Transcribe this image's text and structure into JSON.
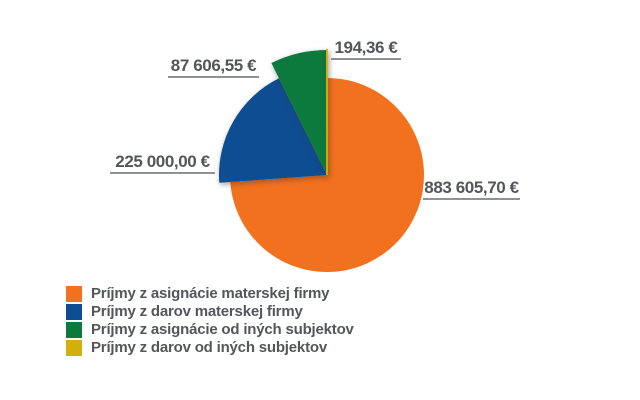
{
  "chart_data": {
    "type": "pie",
    "title": "",
    "direction": "clockwise",
    "start_angle_deg": 0,
    "legend_position": "bottom-left",
    "grid": false,
    "slices": [
      {
        "label": "Príjmy z asignácie materskej firmy",
        "value": 883605.7,
        "display_value": "883 605,70 €",
        "color": "#F2711E"
      },
      {
        "label": "Príjmy z darov materskej firmy",
        "value": 225000.0,
        "display_value": "225 000,00 €",
        "color": "#0E4D92"
      },
      {
        "label": "Príjmy z asignácie od iných subjektov",
        "value": 87606.55,
        "display_value": "87 606,55 €",
        "color": "#0B7A3C"
      },
      {
        "label": "Príjmy z darov od iných subjektov",
        "value": 194.36,
        "display_value": "194,36 €",
        "color": "#D4AF0C"
      }
    ],
    "colors": {
      "label_text": "#54565A",
      "leader_line": "#8F9193"
    }
  }
}
